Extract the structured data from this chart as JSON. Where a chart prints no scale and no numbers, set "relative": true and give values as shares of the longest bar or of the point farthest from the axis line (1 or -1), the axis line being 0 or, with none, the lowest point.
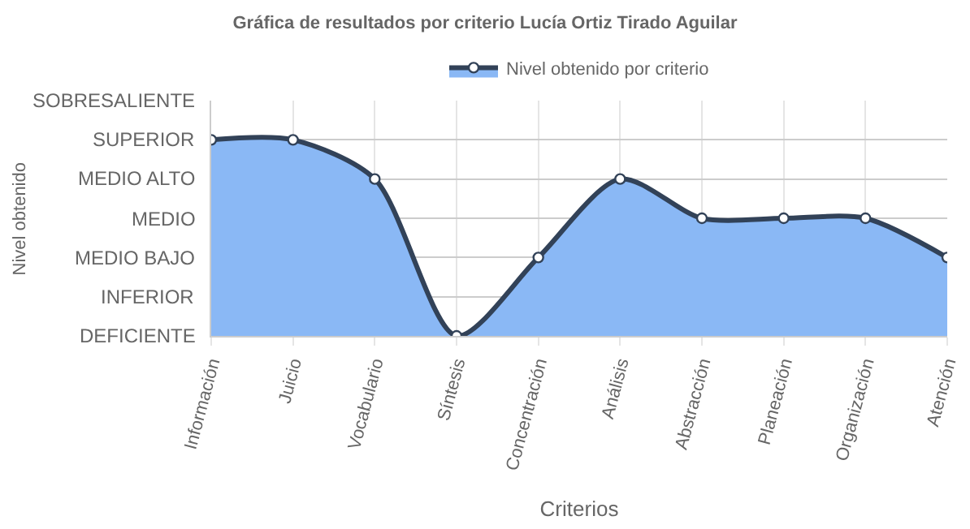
{
  "chart_data": {
    "type": "area",
    "title": "Gráfica de resultados por criterio Lucía Ortiz Tirado Aguilar",
    "xlabel": "Criterios",
    "categories": [
      "Información",
      "Juicio",
      "Vocabulario",
      "Síntesis",
      "Concentración",
      "Análisis",
      "Abstracción",
      "Planeación",
      "Organización",
      "Atención"
    ],
    "series": [
      {
        "name": "Nivel obtenido por criterio",
        "color": "#8ab8f5",
        "values": [
          1,
          1,
          0.8,
          0,
          0.4,
          0.8,
          0.6,
          0.6,
          0.6,
          0.4
        ]
      }
    ],
    "relative": true,
    "annotations": [
      "Nivel obtenido",
      "SOBRESALIENTE",
      "SUPERIOR",
      "MEDIO ALTO",
      "MEDIO",
      "MEDIO BAJO",
      "INFERIOR",
      "DEFICIENTE"
    ],
    "grid": true,
    "legend": "top",
    "marker": "circle",
    "line_style": "solid"
  }
}
